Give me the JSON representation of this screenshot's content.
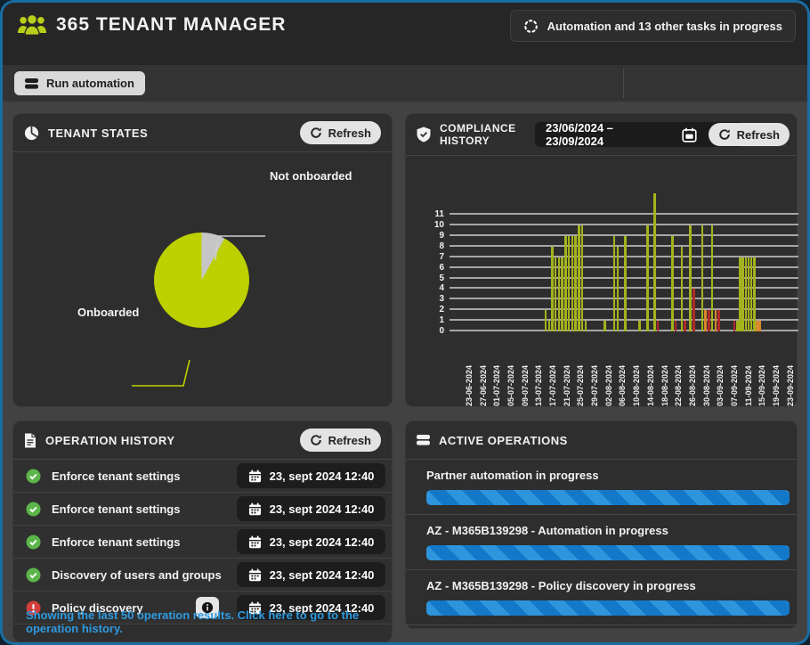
{
  "colors": {
    "frame_blue": "#1a6da1",
    "accent_green": "#bdd000",
    "pie_gray": "#c6c6c6",
    "bar_green": "#a3b31c",
    "bar_red": "#b02a28",
    "bar_orange": "#d9882a",
    "progress_blue": "#1478c8",
    "progress_stripe": "#2e94dc",
    "link_blue": "#2f9be0",
    "status_green": "#5cb54a",
    "status_red": "#d23f3a"
  },
  "header": {
    "title": "365 TENANT MANAGER",
    "tasks_button_label": "Automation and 13 other tasks in progress"
  },
  "toolbar": {
    "run_automation_label": "Run automation"
  },
  "panels": {
    "tenant_states": {
      "title": "TENANT STATES",
      "refresh_label": "Refresh"
    },
    "compliance_history": {
      "title_line1": "COMPLIANCE",
      "title_line2": "HISTORY",
      "date_range": "23/06/2024 – 23/09/2024",
      "refresh_label": "Refresh"
    },
    "operation_history": {
      "title": "OPERATION HISTORY",
      "refresh_label": "Refresh",
      "rows": [
        {
          "status": "success-icon",
          "label": "Enforce tenant settings",
          "date": "23, sept 2024 12:40",
          "info": false
        },
        {
          "status": "success-icon",
          "label": "Enforce tenant settings",
          "date": "23, sept 2024 12:40",
          "info": false
        },
        {
          "status": "success-icon",
          "label": "Enforce tenant settings",
          "date": "23, sept 2024 12:40",
          "info": false
        },
        {
          "status": "success-icon",
          "label": "Discovery of users and groups",
          "date": "23, sept 2024 12:40",
          "info": false
        },
        {
          "status": "error-icon",
          "label": "Policy discovery",
          "date": "23, sept 2024 12:40",
          "info": true
        }
      ],
      "footer_link": "Showing the last 50 operation results. Click here to go to the operation history."
    },
    "active_operations": {
      "title": "ACTIVE OPERATIONS",
      "items": [
        {
          "label": "Partner automation in progress"
        },
        {
          "label": "AZ - M365B139298 - Automation in progress"
        },
        {
          "label": "AZ - M365B139298 - Policy discovery in progress"
        }
      ]
    }
  },
  "chart_data": [
    {
      "type": "pie",
      "title": "TENANT STATES",
      "slices": [
        {
          "label": "Onboarded",
          "value": 92,
          "color": "#bdd000"
        },
        {
          "label": "Not onboarded",
          "value": 8,
          "color": "#c6c6c6"
        }
      ],
      "legend_position": "callouts"
    },
    {
      "type": "bar",
      "title": "COMPLIANCE HISTORY",
      "date_range": "23/06/2024 – 23/09/2024",
      "ylim": [
        0,
        11
      ],
      "yticks": [
        0,
        1,
        2,
        3,
        4,
        5,
        6,
        7,
        8,
        9,
        10,
        11
      ],
      "grid": true,
      "x_tick_labels": [
        "23-06-2024",
        "27-06-2024",
        "01-07-2024",
        "05-07-2024",
        "09-07-2024",
        "13-07-2024",
        "17-07-2024",
        "21-07-2024",
        "25-07-2024",
        "29-07-2024",
        "02-08-2024",
        "06-08-2024",
        "10-08-2024",
        "14-08-2024",
        "18-08-2024",
        "22-08-2024",
        "26-08-2024",
        "30-08-2024",
        "03-09-2024",
        "07-09-2024",
        "11-09-2024",
        "15-09-2024",
        "19-09-2024",
        "23-09-2024"
      ],
      "bar_color_legend": {
        "g": "compliant-green",
        "r": "non-compliant-red",
        "o": "warning-orange"
      },
      "bars": [
        [
          27.2,
          2,
          "g"
        ],
        [
          28.2,
          1,
          "g"
        ],
        [
          29.1,
          8,
          "g"
        ],
        [
          30.1,
          7,
          "g"
        ],
        [
          31.1,
          7,
          "g"
        ],
        [
          32.0,
          7,
          "g"
        ],
        [
          33.0,
          9,
          "g"
        ],
        [
          33.9,
          9,
          "g"
        ],
        [
          34.9,
          9,
          "g"
        ],
        [
          35.8,
          9,
          "g"
        ],
        [
          36.8,
          10,
          "g"
        ],
        [
          37.7,
          10,
          "g"
        ],
        [
          38.7,
          1,
          "g"
        ],
        [
          44.2,
          1,
          "g"
        ],
        [
          46.9,
          9,
          "g"
        ],
        [
          47.9,
          8,
          "g"
        ],
        [
          50.0,
          9,
          "g"
        ],
        [
          54.1,
          1,
          "g"
        ],
        [
          56.4,
          10,
          "g"
        ],
        [
          58.5,
          13,
          "g"
        ],
        [
          59.4,
          1,
          "r"
        ],
        [
          63.6,
          9,
          "g"
        ],
        [
          64.5,
          1,
          "r"
        ],
        [
          66.2,
          8,
          "g"
        ],
        [
          67.2,
          1,
          "r"
        ],
        [
          68.7,
          10,
          "g"
        ],
        [
          69.7,
          4,
          "r"
        ],
        [
          72.1,
          10,
          "g"
        ],
        [
          73.0,
          2,
          "o"
        ],
        [
          74.0,
          2,
          "r"
        ],
        [
          74.9,
          10,
          "g"
        ],
        [
          75.9,
          2,
          "o"
        ],
        [
          76.8,
          2,
          "r"
        ],
        [
          81.3,
          1,
          "r"
        ],
        [
          82.2,
          1,
          "g"
        ],
        [
          83.0,
          7,
          "g"
        ],
        [
          83.8,
          7,
          "g"
        ],
        [
          84.6,
          7,
          "g"
        ],
        [
          85.4,
          7,
          "g"
        ],
        [
          86.2,
          7,
          "g"
        ],
        [
          87.0,
          7,
          "g"
        ],
        [
          87.8,
          1,
          "o"
        ],
        [
          88.6,
          1,
          "o"
        ]
      ]
    }
  ]
}
